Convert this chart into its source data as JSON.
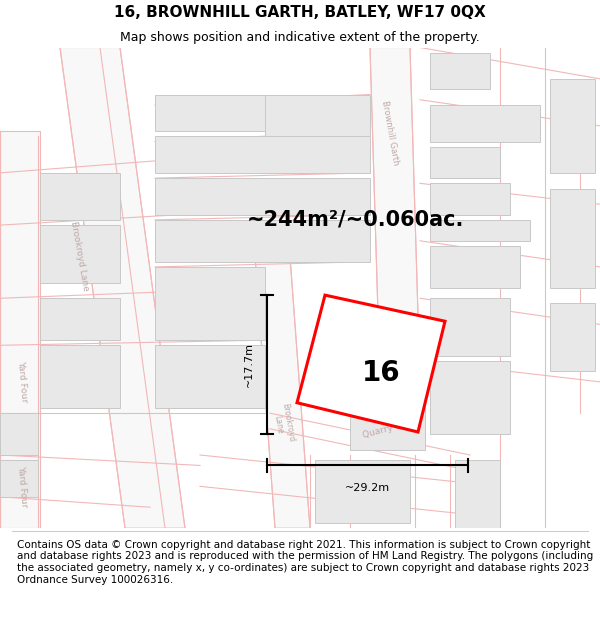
{
  "title": "16, BROWNHILL GARTH, BATLEY, WF17 0QX",
  "subtitle": "Map shows position and indicative extent of the property.",
  "footer": "Contains OS data © Crown copyright and database right 2021. This information is subject to Crown copyright and database rights 2023 and is reproduced with the permission of HM Land Registry. The polygons (including the associated geometry, namely x, y co-ordinates) are subject to Crown copyright and database rights 2023 Ordnance Survey 100026316.",
  "area_text": "~244m²/~0.060ac.",
  "width_label": "~29.2m",
  "height_label": "~17.7m",
  "plot_number": "16",
  "map_bg": "#ffffff",
  "road_line_color": "#f2b8b8",
  "building_fill": "#e8e8e8",
  "building_border": "#c8c8c8",
  "road_label_color": "#c0a8a8",
  "red_plot_color": "#ff0000",
  "dim_line_color": "#000000",
  "title_fontsize": 11,
  "subtitle_fontsize": 9,
  "footer_fontsize": 7.5,
  "area_fontsize": 15,
  "plot_label_fontsize": 20
}
